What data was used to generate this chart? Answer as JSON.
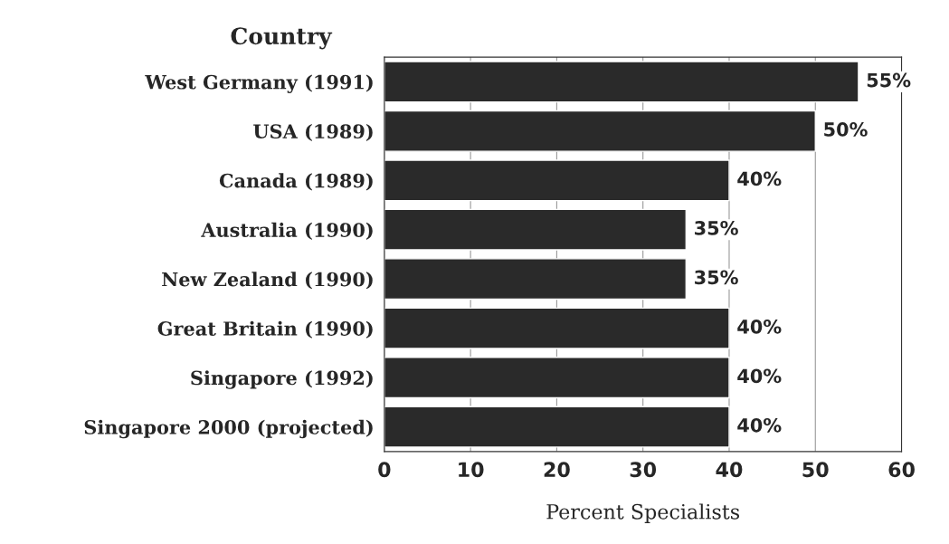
{
  "chart_data": {
    "type": "bar",
    "orientation": "horizontal",
    "ylabel": "Country",
    "xlabel": "Percent Specialists",
    "categories": [
      "West Germany (1991)",
      "USA (1989)",
      "Canada (1989)",
      "Australia (1990)",
      "New Zealand (1990)",
      "Great Britain (1990)",
      "Singapore (1992)",
      "Singapore 2000 (projected)"
    ],
    "values": [
      55,
      50,
      40,
      35,
      35,
      40,
      40,
      40
    ],
    "value_labels": [
      "55%",
      "50%",
      "40%",
      "35%",
      "35%",
      "40%",
      "40%",
      "40%"
    ],
    "color": "#2a2a2a",
    "xlim": [
      0,
      60
    ],
    "xticks": [
      0,
      10,
      20,
      30,
      40,
      50,
      60
    ],
    "grid": "x",
    "legend": false
  }
}
